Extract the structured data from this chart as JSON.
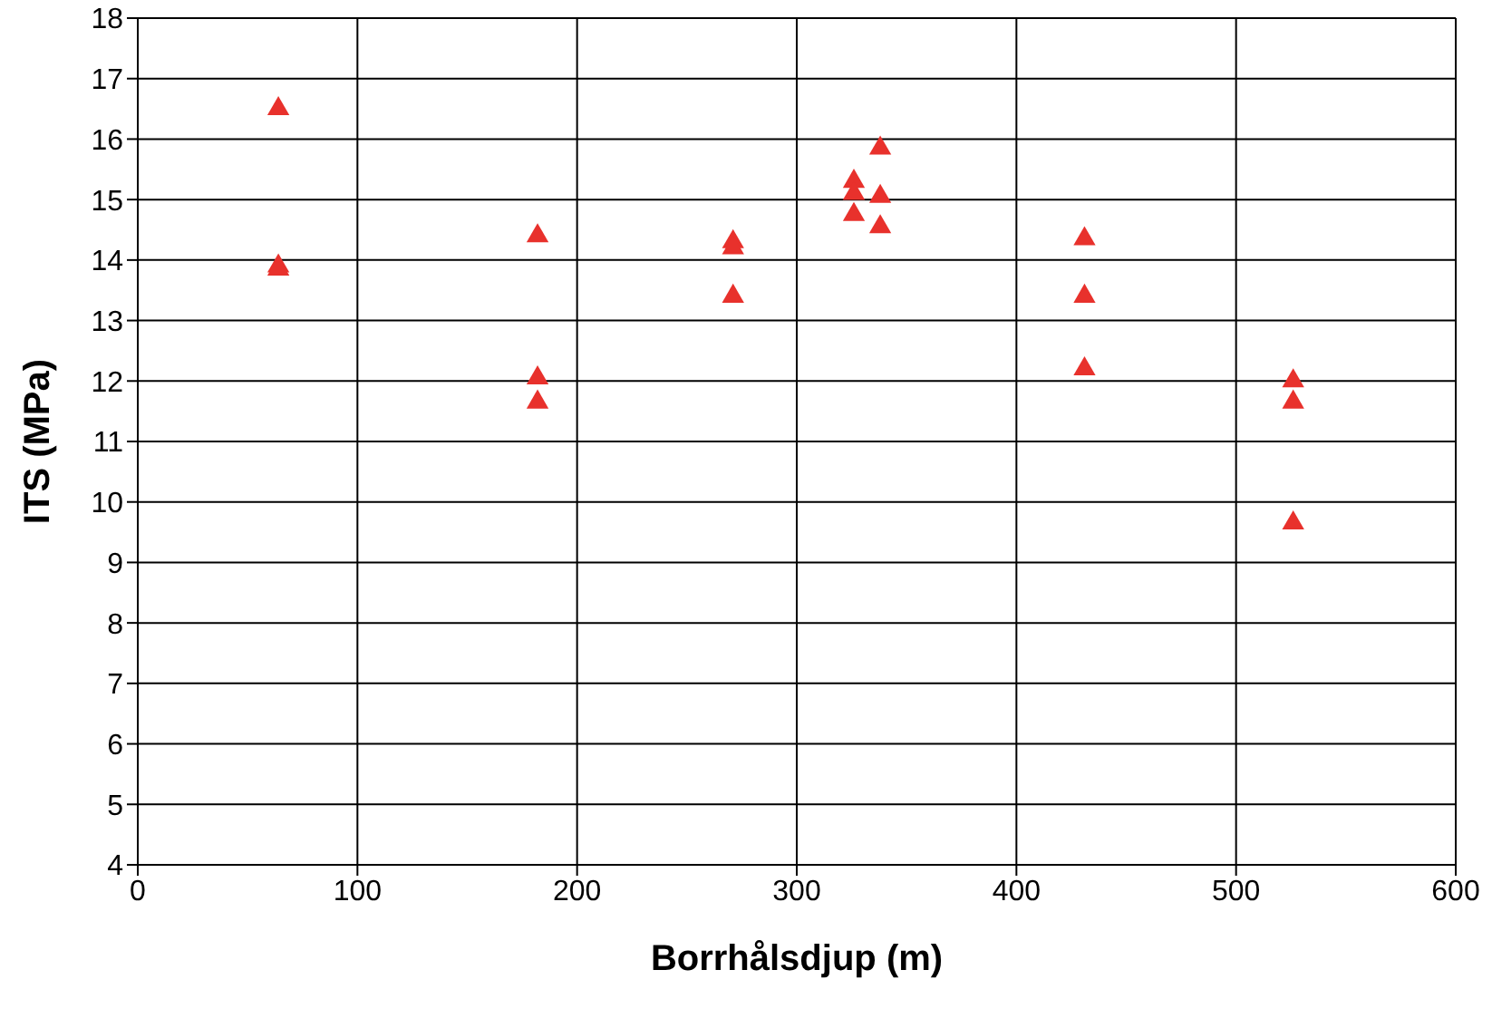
{
  "chart_data": {
    "type": "scatter",
    "xlabel": "Borrhålsdjup (m)",
    "ylabel": "ITS (MPa)",
    "x": [
      64,
      64,
      64,
      182,
      182,
      182,
      271,
      271,
      271,
      326,
      326,
      326,
      338,
      338,
      338,
      431,
      431,
      431,
      526,
      526,
      526
    ],
    "series": [
      {
        "color": "#e8312c",
        "values": [
          16.5,
          13.9,
          13.85,
          14.4,
          12.05,
          11.65,
          14.3,
          14.2,
          13.4,
          15.3,
          15.1,
          14.75,
          15.85,
          15.05,
          14.55,
          14.35,
          13.4,
          12.2,
          12.0,
          11.65,
          9.65
        ]
      }
    ],
    "xlim": [
      0,
      600
    ],
    "xticks": [
      0,
      100,
      200,
      300,
      400,
      500,
      600
    ],
    "ylim": [
      4,
      18
    ],
    "yticks": [
      4,
      5,
      6,
      7,
      8,
      9,
      10,
      11,
      12,
      13,
      14,
      15,
      16,
      17,
      18
    ],
    "grid": true,
    "marker": "triangle"
  }
}
